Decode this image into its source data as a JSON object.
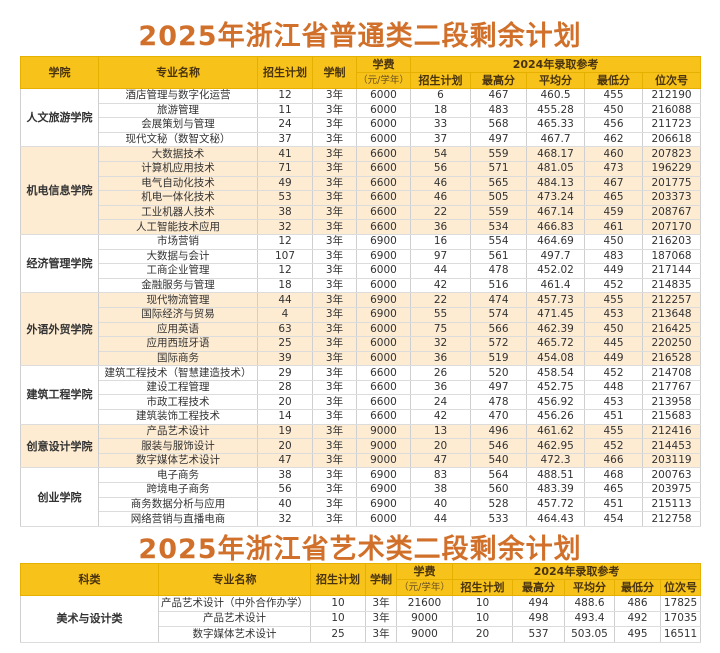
{
  "general_table": {
    "title": "2025年浙江省普通类二段剩余计划",
    "headers": {
      "college": "学院",
      "major": "专业名称",
      "plan": "招生计划",
      "duration": "学制",
      "tuition": "学费",
      "tuition_unit": "（元/学年）",
      "ref_group": "2024年录取参考",
      "ref_plan": "招生计划",
      "ref_max": "最高分",
      "ref_avg": "平均分",
      "ref_min": "最低分",
      "ref_rank": "位次号"
    },
    "groups": [
      {
        "college": "人文旅游学院",
        "rows": [
          [
            "酒店管理与数字化运营",
            "12",
            "3年",
            "6000",
            "6",
            "467",
            "460.5",
            "455",
            "212190"
          ],
          [
            "旅游管理",
            "11",
            "3年",
            "6000",
            "18",
            "483",
            "455.28",
            "450",
            "216088"
          ],
          [
            "会展策划与管理",
            "24",
            "3年",
            "6000",
            "33",
            "568",
            "465.33",
            "456",
            "211723"
          ],
          [
            "现代文秘（数智文秘）",
            "37",
            "3年",
            "6000",
            "37",
            "497",
            "467.7",
            "462",
            "206618"
          ]
        ]
      },
      {
        "college": "机电信息学院",
        "rows": [
          [
            "大数据技术",
            "41",
            "3年",
            "6600",
            "54",
            "559",
            "468.17",
            "460",
            "207823"
          ],
          [
            "计算机应用技术",
            "71",
            "3年",
            "6600",
            "56",
            "571",
            "481.05",
            "473",
            "196229"
          ],
          [
            "电气自动化技术",
            "49",
            "3年",
            "6600",
            "46",
            "565",
            "484.13",
            "467",
            "201775"
          ],
          [
            "机电一体化技术",
            "53",
            "3年",
            "6600",
            "46",
            "505",
            "473.24",
            "465",
            "203373"
          ],
          [
            "工业机器人技术",
            "38",
            "3年",
            "6600",
            "22",
            "559",
            "467.14",
            "459",
            "208767"
          ],
          [
            "人工智能技术应用",
            "32",
            "3年",
            "6600",
            "36",
            "534",
            "466.83",
            "461",
            "207170"
          ]
        ]
      },
      {
        "college": "经济管理学院",
        "rows": [
          [
            "市场营销",
            "12",
            "3年",
            "6900",
            "16",
            "554",
            "464.69",
            "450",
            "216203"
          ],
          [
            "大数据与会计",
            "107",
            "3年",
            "6900",
            "97",
            "561",
            "497.7",
            "483",
            "187068"
          ],
          [
            "工商企业管理",
            "12",
            "3年",
            "6000",
            "44",
            "478",
            "452.02",
            "449",
            "217144"
          ],
          [
            "金融服务与管理",
            "18",
            "3年",
            "6000",
            "42",
            "516",
            "461.4",
            "452",
            "214835"
          ]
        ]
      },
      {
        "college": "外语外贸学院",
        "rows": [
          [
            "现代物流管理",
            "44",
            "3年",
            "6900",
            "22",
            "474",
            "457.73",
            "455",
            "212257"
          ],
          [
            "国际经济与贸易",
            "4",
            "3年",
            "6900",
            "55",
            "574",
            "471.45",
            "453",
            "213648"
          ],
          [
            "应用英语",
            "63",
            "3年",
            "6000",
            "75",
            "566",
            "462.39",
            "450",
            "216425"
          ],
          [
            "应用西班牙语",
            "25",
            "3年",
            "6000",
            "32",
            "572",
            "465.72",
            "445",
            "220250"
          ],
          [
            "国际商务",
            "39",
            "3年",
            "6000",
            "36",
            "519",
            "454.08",
            "449",
            "216528"
          ]
        ]
      },
      {
        "college": "建筑工程学院",
        "rows": [
          [
            "建筑工程技术（智慧建造技术）",
            "29",
            "3年",
            "6600",
            "26",
            "520",
            "458.54",
            "452",
            "214708"
          ],
          [
            "建设工程管理",
            "28",
            "3年",
            "6600",
            "36",
            "497",
            "452.75",
            "448",
            "217767"
          ],
          [
            "市政工程技术",
            "20",
            "3年",
            "6600",
            "24",
            "478",
            "456.92",
            "453",
            "213958"
          ],
          [
            "建筑装饰工程技术",
            "14",
            "3年",
            "6600",
            "42",
            "470",
            "456.26",
            "451",
            "215683"
          ]
        ]
      },
      {
        "college": "创意设计学院",
        "rows": [
          [
            "产品艺术设计",
            "19",
            "3年",
            "9000",
            "13",
            "496",
            "461.62",
            "455",
            "212416"
          ],
          [
            "服装与服饰设计",
            "20",
            "3年",
            "9000",
            "20",
            "546",
            "462.95",
            "452",
            "214453"
          ],
          [
            "数字媒体艺术设计",
            "47",
            "3年",
            "9000",
            "47",
            "540",
            "472.3",
            "466",
            "203119"
          ]
        ]
      },
      {
        "college": "创业学院",
        "rows": [
          [
            "电子商务",
            "38",
            "3年",
            "6900",
            "83",
            "564",
            "488.51",
            "468",
            "200763"
          ],
          [
            "跨境电子商务",
            "56",
            "3年",
            "6900",
            "38",
            "560",
            "483.39",
            "465",
            "203975"
          ],
          [
            "商务数据分析与应用",
            "40",
            "3年",
            "6900",
            "40",
            "528",
            "457.72",
            "451",
            "215113"
          ],
          [
            "网络营销与直播电商",
            "32",
            "3年",
            "6000",
            "44",
            "533",
            "464.43",
            "454",
            "212758"
          ]
        ]
      }
    ]
  },
  "art_table": {
    "title": "2025年浙江省艺术类二段剩余计划",
    "headers": {
      "category": "科类",
      "major": "专业名称",
      "plan": "招生计划",
      "duration": "学制",
      "tuition": "学费",
      "tuition_unit": "（元/学年）",
      "ref_group": "2024年录取参考",
      "ref_plan": "招生计划",
      "ref_max": "最高分",
      "ref_avg": "平均分",
      "ref_min": "最低分",
      "ref_rank": "位次号"
    },
    "groups": [
      {
        "category": "美术与设计类",
        "rows": [
          [
            "产品艺术设计（中外合作办学）",
            "10",
            "3年",
            "21600",
            "10",
            "494",
            "488.6",
            "486",
            "17825"
          ],
          [
            "产品艺术设计",
            "10",
            "3年",
            "9000",
            "10",
            "498",
            "493.4",
            "492",
            "17035"
          ],
          [
            "数字媒体艺术设计",
            "25",
            "3年",
            "9000",
            "20",
            "537",
            "503.05",
            "495",
            "16511"
          ]
        ]
      }
    ]
  },
  "colors": {
    "title": "#d0702a",
    "header_bg": "#f7c21a",
    "band_bg": "#fdebd2"
  }
}
